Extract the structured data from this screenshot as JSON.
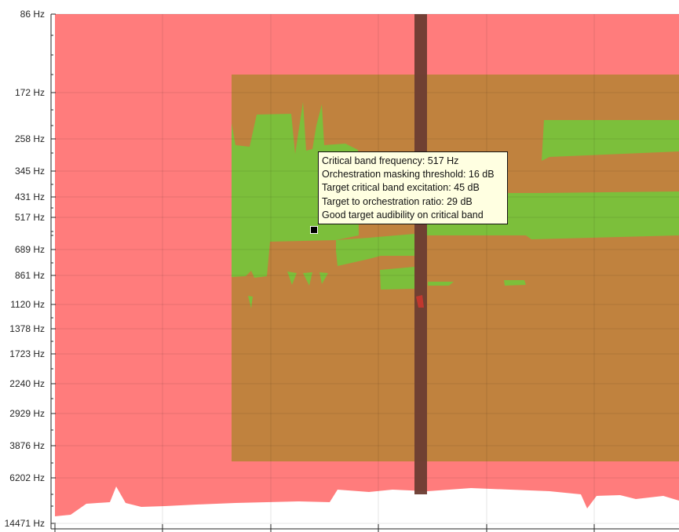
{
  "chart_data": {
    "type": "heatmap",
    "title": "",
    "xlabel": "",
    "ylabel": "",
    "y_axis_scale": "log-frequency (critical bands)",
    "y_ticks": [
      "86 Hz",
      "172 Hz",
      "258 Hz",
      "345 Hz",
      "431 Hz",
      "517 Hz",
      "689 Hz",
      "861 Hz",
      "1120 Hz",
      "1378 Hz",
      "1723 Hz",
      "2240 Hz",
      "2929 Hz",
      "3876 Hz",
      "6202 Hz",
      "14471 Hz"
    ],
    "y_ticks_hz": [
      86,
      172,
      258,
      345,
      431,
      517,
      689,
      861,
      1120,
      1378,
      1723,
      2240,
      2929,
      3876,
      6202,
      14471
    ],
    "x_tick_labels": [],
    "grid": true,
    "colors": {
      "masked": "#ff7c7c",
      "target_range_overlay": "#c0823e",
      "audible": "#7cbf3b",
      "cursor_band": "#6b3c32",
      "below_threshold": "#ffffff",
      "red_spot": "#c0372e"
    },
    "regions": [
      {
        "name": "orchestration masked area",
        "color": "masked"
      },
      {
        "name": "target frequency range",
        "color": "target_range_overlay",
        "freq_hz": [
          172,
          5000
        ]
      },
      {
        "name": "target audible on critical band",
        "color": "audible"
      }
    ]
  },
  "tooltip": {
    "line1": "Critical band frequency: 517 Hz",
    "line2": "Orchestration masking threshold: 16 dB",
    "line3": "Target critical band excitation: 45 dB",
    "line4": "Target to orchestration ratio: 29 dB",
    "line5": "Good target audibility on critical band"
  }
}
